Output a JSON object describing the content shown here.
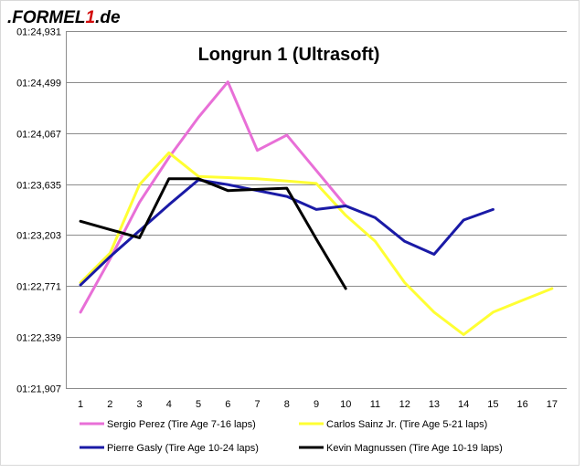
{
  "logo": {
    "text": ".FORMEL1.de"
  },
  "chart_data": {
    "type": "line",
    "title": "Longrun 1 (Ultrasoft)",
    "xlabel": "",
    "ylabel": "",
    "x": [
      1,
      2,
      3,
      4,
      5,
      6,
      7,
      8,
      9,
      10,
      11,
      12,
      13,
      14,
      15,
      16,
      17
    ],
    "x_tick_labels": [
      "1",
      "2",
      "3",
      "4",
      "5",
      "6",
      "7",
      "8",
      "9",
      "10",
      "11",
      "12",
      "13",
      "14",
      "15",
      "16",
      "17"
    ],
    "ylim": [
      81.907,
      84.931
    ],
    "y_ticks": [
      81.907,
      82.339,
      82.771,
      83.203,
      83.635,
      84.067,
      84.499,
      84.931
    ],
    "y_tick_labels": [
      "01:21,907",
      "01:22,339",
      "01:22,771",
      "01:23,203",
      "01:23,635",
      "01:24,067",
      "01:24,499",
      "01:24,931"
    ],
    "grid": true,
    "legend_position": "bottom",
    "series": [
      {
        "name": "Sergio Perez (Tire Age 7-16 laps)",
        "color": "#e86fd7",
        "values": [
          82.55,
          83.0,
          83.48,
          83.86,
          84.2,
          84.5,
          83.92,
          84.05,
          83.75,
          83.45,
          null,
          null,
          null,
          null,
          null,
          null,
          null
        ]
      },
      {
        "name": "Carlos Sainz Jr. (Tire Age 5-21 laps)",
        "color": "#ffff33",
        "values": [
          82.8,
          83.05,
          83.63,
          83.9,
          83.7,
          83.69,
          83.68,
          83.66,
          83.64,
          83.37,
          83.15,
          82.8,
          82.55,
          82.36,
          82.55,
          82.65,
          82.75
        ]
      },
      {
        "name": "Pierre Gasly (Tire Age 10-24 laps)",
        "color": "#1a1aa6",
        "values": [
          82.78,
          83.02,
          83.24,
          83.46,
          83.67,
          83.63,
          83.58,
          83.53,
          83.42,
          83.45,
          83.35,
          83.15,
          83.04,
          83.33,
          83.42,
          null,
          null
        ]
      },
      {
        "name": "Kevin Magnussen (Tire Age 10-19 laps)",
        "color": "#000000",
        "values": [
          83.32,
          83.25,
          83.18,
          83.68,
          83.68,
          83.58,
          83.59,
          83.6,
          83.17,
          82.75,
          null,
          null,
          null,
          null,
          null,
          null,
          null
        ]
      }
    ]
  }
}
